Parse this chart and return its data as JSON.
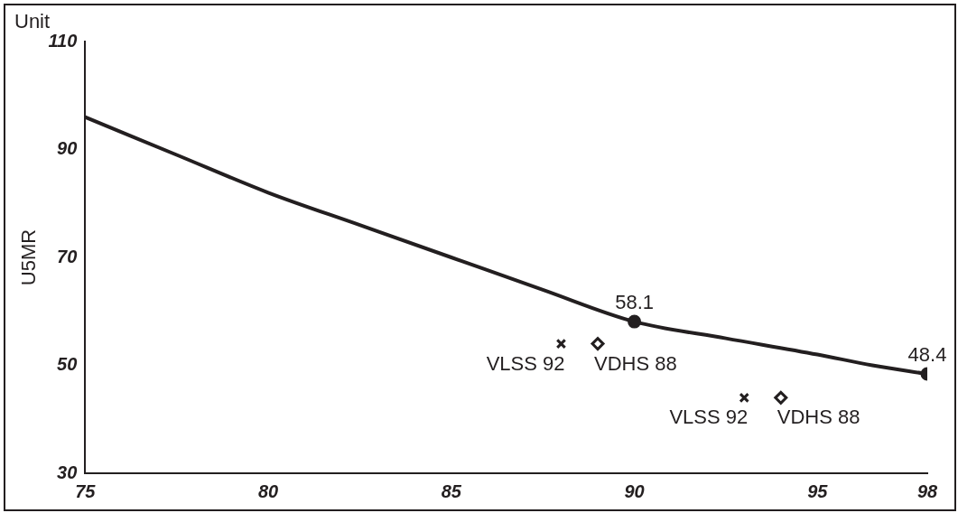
{
  "chart_data": {
    "type": "line",
    "ylabel": "U5MR",
    "xlim": [
      75,
      98
    ],
    "xticks": [
      75,
      80,
      85,
      90,
      95,
      98
    ],
    "ylim": [
      30,
      110
    ],
    "yticks": [
      30,
      50,
      70,
      90,
      110
    ],
    "series": [
      {
        "color": "#231f20",
        "marker": "none",
        "line_style": "solid",
        "x": [
          75,
          77.5,
          80,
          82.5,
          85,
          87.5,
          90,
          92.5,
          95,
          96.5,
          98
        ],
        "values": [
          96,
          89,
          82,
          76,
          70,
          64,
          58.1,
          55,
          52,
          50,
          48.4
        ]
      },
      {
        "type": "scatter",
        "color": "#231f20",
        "marker": "circle",
        "x": [
          90,
          98
        ],
        "values": [
          58.1,
          48.4
        ],
        "value_labels": [
          "58.1",
          "48.4"
        ]
      },
      {
        "type": "scatter",
        "color": "#231f20",
        "marker": "cross",
        "x": [
          88,
          93
        ],
        "values": [
          54,
          44
        ]
      },
      {
        "type": "scatter",
        "color": "#231f20",
        "marker": "diamond",
        "x": [
          89,
          94
        ],
        "values": [
          54,
          44
        ]
      }
    ],
    "annotations": [
      "Unit",
      {
        "text": "VLSS 92",
        "x": 88,
        "y": 54
      },
      {
        "text": "VDHS 88",
        "x": 89,
        "y": 54
      },
      {
        "text": "VLSS 92",
        "x": 93,
        "y": 44
      },
      {
        "text": "VDHS 88",
        "x": 94,
        "y": 44
      }
    ]
  }
}
